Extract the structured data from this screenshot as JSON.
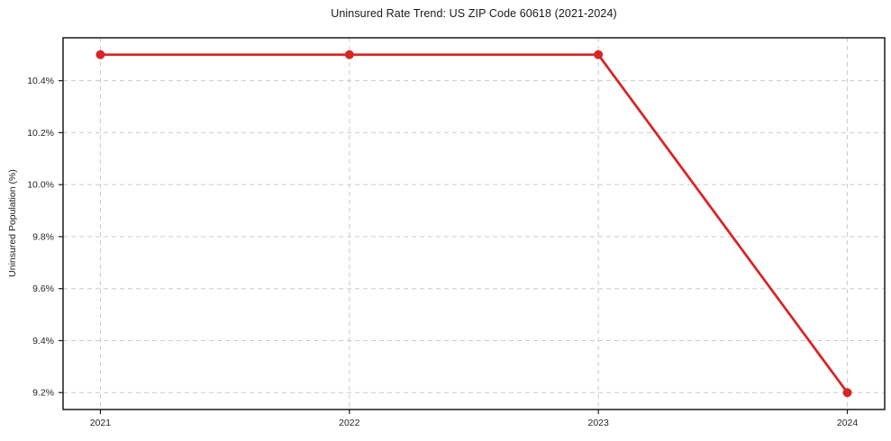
{
  "chart": {
    "title": "Uninsured Rate Trend: US ZIP Code 60618 (2021-2024)",
    "ylabel": "Uninsured Population (%)"
  },
  "chart_data": {
    "type": "line",
    "title": "Uninsured Rate Trend: US ZIP Code 60618 (2021-2024)",
    "xlabel": "",
    "ylabel": "Uninsured Population (%)",
    "x": [
      2021,
      2022,
      2023,
      2024
    ],
    "x_tick_labels": [
      "2021",
      "2022",
      "2023",
      "2024"
    ],
    "series": [
      {
        "name": "Uninsured Population (%)",
        "values": [
          10.5,
          10.5,
          10.5,
          9.2
        ],
        "color": "#d62728",
        "marker": "circle"
      }
    ],
    "yticks": [
      9.2,
      9.4,
      9.6,
      9.8,
      10.0,
      10.2,
      10.4
    ],
    "ytick_labels": [
      "9.2%",
      "9.4%",
      "9.6%",
      "9.8%",
      "10.0%",
      "10.2%",
      "10.4%"
    ],
    "ylim": [
      9.135,
      10.565
    ],
    "xlim": [
      2020.85,
      2024.15
    ],
    "grid": true,
    "grid_style": "dashed",
    "legend_position": "none"
  },
  "colors": {
    "line": "#d62728",
    "grid": "#cccccc",
    "spine": "#1a1a1a",
    "tick_text": "#262626",
    "background": "#ffffff"
  }
}
